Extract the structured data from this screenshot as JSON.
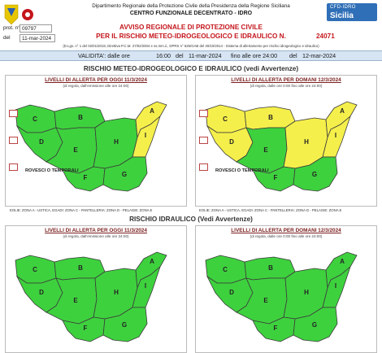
{
  "header": {
    "dept": "Dipartimento Regionale della Protezione Civile della Presidenza della Regione Siciliana",
    "centro": "CENTRO FUNZIONALE DECENTRATO - IDRO",
    "cfd_logo_line1": "CFD-IDRO",
    "cfd_logo_line2": "Sicilia",
    "prot_label": "prot. n°",
    "prot_value": "09797",
    "del_label": "del",
    "del_value": "11-mar-2024",
    "avviso_line1": "AVVISO REGIONALE DI PROTEZIONE CIVILE",
    "avviso_line2": "PER IL RISCHIO METEO-IDROGEOLOGICO E IDRAULICO N.",
    "avviso_number": "24071",
    "dlgs": "(D.Lgs. n° 1 del 02/01/2018, Direttiva P.C.M. 27/02/2004 e ss.mm.ii., DPRS n° 626/GAB del 30/10/2014 - Sistema di allertamento per rischio idrogeologico e idraulico)"
  },
  "validity": {
    "label": "VALIDITA': dalle ore",
    "from_time": "16:00",
    "from_del": "del",
    "from_date": "11-mar-2024",
    "to_label": "fino alle ore 24:00",
    "to_del": "del",
    "to_date": "12-mar-2024"
  },
  "section1": {
    "title": "RISCHIO METEO-IDROGEOLOGICO E IDRAULICO (vedi Avvertenze)",
    "left": {
      "head": "LIVELLI DI ALLERTA PER OGGI 11/3/2024",
      "sub": "(di regola, dall'emissione alle ore 24:00)",
      "note": "ROVESCI O TEMPORALI"
    },
    "right": {
      "head": "LIVELLI DI ALLERTA PER DOMANI 12/3/2024",
      "sub": "(di regola, dalle ore 0:00 fino alle ore 24:00)",
      "note": "ROVESCI O TEMPORALI"
    },
    "eolie_left": "EOLIE: ZONA A - USTICA, EGADI: ZONA C - PANTELLERIA: ZONA D - PELAGIE: ZONA E",
    "eolie_right": "EOLIE: ZONA A - USTICA, EGADI: ZONA C - PANTELLERIA: ZONA D - PELAGIE: ZONA E"
  },
  "section2": {
    "title": "RISCHIO IDRAULICO (Vedi Avvertenze)",
    "left": {
      "head": "LIVELLI DI ALLERTA PER OGGI 11/3/2024",
      "sub": "(di regola, dall'emissione alle ore 24:00)"
    },
    "right": {
      "head": "LIVELLI DI ALLERTA PER DOMANI 12/3/2024",
      "sub": "(di regola, dalle ore 0:00 fino alle ore 24:00)"
    }
  },
  "zones": {
    "A": "A",
    "B": "B",
    "C": "C",
    "D": "D",
    "E": "E",
    "F": "F",
    "G": "G",
    "H": "H",
    "I": "I"
  },
  "map_levels": {
    "s1_left": {
      "A": "yellow",
      "I": "yellow",
      "B": "green",
      "C": "green",
      "D": "green",
      "E": "green",
      "F": "green",
      "G": "green",
      "H": "green"
    },
    "s1_right": {
      "A": "yellow",
      "B": "yellow",
      "C": "yellow",
      "D": "yellow",
      "H": "yellow",
      "I": "yellow",
      "E": "green",
      "F": "green",
      "G": "green"
    },
    "s2_left": "green",
    "s2_right": "green"
  },
  "colors": {
    "green": "#3ed13e",
    "yellow": "#f5ef4b",
    "accent_red": "#c4161c",
    "validity_band": "#d6e4f3"
  },
  "icons": [
    "protezione-civile-logo",
    "storm-icon",
    "cfd-idro-logo"
  ]
}
